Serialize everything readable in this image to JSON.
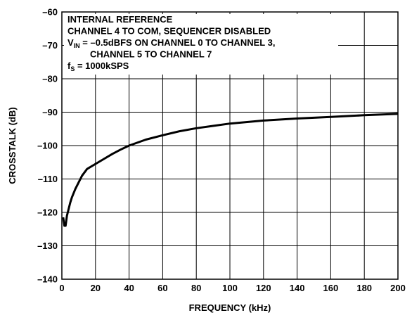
{
  "chart_data": {
    "type": "line",
    "title": "",
    "xlabel": "FREQUENCY (kHz)",
    "ylabel": "CROSSTALK (dB)",
    "xlim": [
      0,
      200
    ],
    "ylim": [
      -140,
      -60
    ],
    "x_ticks": [
      "0",
      "20",
      "40",
      "60",
      "80",
      "100",
      "120",
      "140",
      "160",
      "180",
      "200"
    ],
    "y_ticks": [
      "–60",
      "–70",
      "–80",
      "–90",
      "–100",
      "–110",
      "–120",
      "–130",
      "–140"
    ],
    "grid": true,
    "annotation_lines": [
      {
        "text": "INTERNAL REFERENCE"
      },
      {
        "text": "CHANNEL 4 TO COM, SEQUENCER DISABLED"
      },
      {
        "prefix": "V",
        "sub": "IN",
        "text": " = –0.5dBFS ON CHANNEL 0 TO CHANNEL 3,"
      },
      {
        "text": "CHANNEL 5 TO CHANNEL 7"
      },
      {
        "prefix": "f",
        "sub": "S",
        "text": " = 1000kSPS"
      }
    ],
    "series": [
      {
        "x": [
          0.8,
          1.5,
          2.2,
          3,
          4,
          5,
          6,
          8,
          10,
          12,
          15,
          20,
          25,
          30,
          35,
          40,
          50,
          60,
          70,
          80,
          90,
          100,
          120,
          140,
          160,
          180,
          200
        ],
        "y": [
          -121.5,
          -124,
          -124,
          -121,
          -119,
          -117,
          -115.5,
          -113,
          -111,
          -109,
          -107,
          -105.5,
          -104,
          -102.5,
          -101.2,
          -100,
          -98.2,
          -96.9,
          -95.7,
          -94.8,
          -94.1,
          -93.4,
          -92.5,
          -91.9,
          -91.4,
          -90.9,
          -90.5
        ]
      }
    ]
  }
}
